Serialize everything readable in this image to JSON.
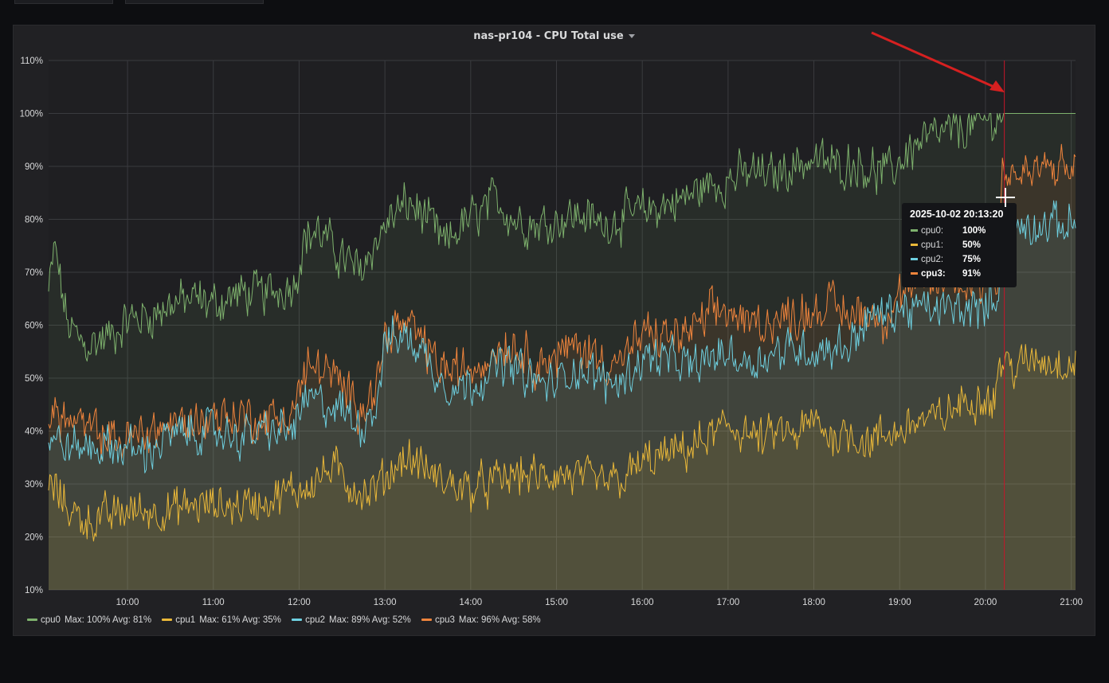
{
  "panel": {
    "title": "nas-pr104 - CPU Total use"
  },
  "chart_data": {
    "type": "area",
    "title": "nas-pr104 - CPU Total use",
    "x_ticks": [
      "10:00",
      "11:00",
      "12:00",
      "13:00",
      "14:00",
      "15:00",
      "16:00",
      "17:00",
      "18:00",
      "19:00",
      "20:00",
      "21:00"
    ],
    "x_range_hours": [
      9.08,
      21.05
    ],
    "y_ticks": [
      "10%",
      "20%",
      "30%",
      "40%",
      "50%",
      "60%",
      "70%",
      "80%",
      "90%",
      "100%",
      "110%"
    ],
    "ylim": [
      10,
      110
    ],
    "grid": true,
    "series": [
      {
        "name": "cpu0",
        "color": "#7eb26d",
        "keypoints": [
          [
            9.08,
            66
          ],
          [
            9.15,
            75
          ],
          [
            9.3,
            60
          ],
          [
            9.5,
            56
          ],
          [
            9.8,
            58
          ],
          [
            10.0,
            61
          ],
          [
            10.3,
            62
          ],
          [
            10.5,
            64
          ],
          [
            10.8,
            65
          ],
          [
            11.0,
            64
          ],
          [
            11.3,
            66
          ],
          [
            11.6,
            66
          ],
          [
            11.8,
            67
          ],
          [
            11.95,
            68
          ],
          [
            12.05,
            76
          ],
          [
            12.2,
            78
          ],
          [
            12.5,
            73
          ],
          [
            12.7,
            70
          ],
          [
            12.9,
            76
          ],
          [
            13.1,
            81
          ],
          [
            13.3,
            83
          ],
          [
            13.5,
            80
          ],
          [
            13.7,
            75
          ],
          [
            13.9,
            79
          ],
          [
            14.1,
            81
          ],
          [
            14.3,
            84
          ],
          [
            14.5,
            80
          ],
          [
            14.8,
            79
          ],
          [
            15.0,
            80
          ],
          [
            15.3,
            81
          ],
          [
            15.5,
            79
          ],
          [
            15.7,
            80
          ],
          [
            15.9,
            81
          ],
          [
            16.1,
            82
          ],
          [
            16.3,
            83
          ],
          [
            16.5,
            84
          ],
          [
            16.7,
            86
          ],
          [
            16.9,
            87
          ],
          [
            17.1,
            88
          ],
          [
            17.3,
            89
          ],
          [
            17.5,
            88
          ],
          [
            17.7,
            90
          ],
          [
            17.9,
            91
          ],
          [
            18.1,
            91
          ],
          [
            18.3,
            90
          ],
          [
            18.5,
            91
          ],
          [
            18.7,
            89
          ],
          [
            18.9,
            89
          ],
          [
            19.1,
            93
          ],
          [
            19.3,
            95
          ],
          [
            19.5,
            96
          ],
          [
            19.7,
            97
          ],
          [
            19.9,
            98
          ],
          [
            20.1,
            99
          ],
          [
            20.22,
            100
          ],
          [
            21.05,
            100
          ]
        ],
        "max": "100%",
        "avg": "81%"
      },
      {
        "name": "cpu1",
        "color": "#eab839",
        "keypoints": [
          [
            9.08,
            30
          ],
          [
            9.2,
            28
          ],
          [
            9.4,
            24
          ],
          [
            9.6,
            23
          ],
          [
            9.8,
            24
          ],
          [
            10.0,
            25
          ],
          [
            10.3,
            25
          ],
          [
            10.5,
            25
          ],
          [
            10.8,
            26
          ],
          [
            11.0,
            26
          ],
          [
            11.3,
            26
          ],
          [
            11.6,
            27
          ],
          [
            11.8,
            28
          ],
          [
            12.0,
            29
          ],
          [
            12.2,
            31
          ],
          [
            12.4,
            33
          ],
          [
            12.6,
            30
          ],
          [
            12.8,
            28
          ],
          [
            13.0,
            31
          ],
          [
            13.2,
            35
          ],
          [
            13.4,
            34
          ],
          [
            13.6,
            31
          ],
          [
            13.8,
            30
          ],
          [
            14.0,
            29
          ],
          [
            14.2,
            30
          ],
          [
            14.4,
            31
          ],
          [
            14.6,
            32
          ],
          [
            14.8,
            31
          ],
          [
            15.0,
            32
          ],
          [
            15.3,
            31
          ],
          [
            15.5,
            30
          ],
          [
            15.8,
            31
          ],
          [
            16.0,
            34
          ],
          [
            16.2,
            35
          ],
          [
            16.4,
            36
          ],
          [
            16.6,
            37
          ],
          [
            16.8,
            39
          ],
          [
            17.0,
            41
          ],
          [
            17.2,
            40
          ],
          [
            17.4,
            38
          ],
          [
            17.6,
            40
          ],
          [
            17.8,
            39
          ],
          [
            18.0,
            42
          ],
          [
            18.2,
            39
          ],
          [
            18.4,
            40
          ],
          [
            18.6,
            38
          ],
          [
            18.8,
            39
          ],
          [
            19.0,
            40
          ],
          [
            19.2,
            42
          ],
          [
            19.4,
            42
          ],
          [
            19.6,
            44
          ],
          [
            19.8,
            46
          ],
          [
            20.0,
            47
          ],
          [
            20.1,
            45
          ],
          [
            20.15,
            53
          ],
          [
            20.4,
            52
          ],
          [
            20.6,
            54
          ],
          [
            20.8,
            53
          ],
          [
            21.05,
            53
          ]
        ],
        "max": "61%",
        "avg": "35%"
      },
      {
        "name": "cpu2",
        "color": "#6ed0e0",
        "keypoints": [
          [
            9.08,
            39
          ],
          [
            9.3,
            37
          ],
          [
            9.6,
            37
          ],
          [
            9.9,
            37
          ],
          [
            10.2,
            36
          ],
          [
            10.5,
            39
          ],
          [
            10.8,
            40
          ],
          [
            11.0,
            40
          ],
          [
            11.3,
            39
          ],
          [
            11.6,
            40
          ],
          [
            11.9,
            40
          ],
          [
            12.1,
            46
          ],
          [
            12.3,
            45
          ],
          [
            12.5,
            44
          ],
          [
            12.7,
            41
          ],
          [
            12.9,
            45
          ],
          [
            13.0,
            57
          ],
          [
            13.2,
            58
          ],
          [
            13.4,
            56
          ],
          [
            13.6,
            51
          ],
          [
            13.8,
            48
          ],
          [
            14.0,
            49
          ],
          [
            14.2,
            51
          ],
          [
            14.4,
            53
          ],
          [
            14.6,
            51
          ],
          [
            14.8,
            49
          ],
          [
            15.0,
            49
          ],
          [
            15.2,
            52
          ],
          [
            15.4,
            51
          ],
          [
            15.6,
            49
          ],
          [
            15.8,
            50
          ],
          [
            16.0,
            54
          ],
          [
            16.2,
            54
          ],
          [
            16.4,
            53
          ],
          [
            16.6,
            52
          ],
          [
            16.8,
            54
          ],
          [
            17.0,
            55
          ],
          [
            17.2,
            53
          ],
          [
            17.4,
            54
          ],
          [
            17.6,
            55
          ],
          [
            17.8,
            56
          ],
          [
            18.0,
            55
          ],
          [
            18.2,
            56
          ],
          [
            18.4,
            56
          ],
          [
            18.6,
            61
          ],
          [
            18.8,
            62
          ],
          [
            19.0,
            63
          ],
          [
            19.2,
            63
          ],
          [
            19.4,
            63
          ],
          [
            19.6,
            63
          ],
          [
            19.8,
            63
          ],
          [
            20.0,
            63
          ],
          [
            20.15,
            67
          ],
          [
            20.3,
            78
          ],
          [
            20.5,
            79
          ],
          [
            20.8,
            79
          ],
          [
            21.05,
            79
          ]
        ],
        "max": "89%",
        "avg": "52%"
      },
      {
        "name": "cpu3",
        "color": "#ef843c",
        "keypoints": [
          [
            9.08,
            44
          ],
          [
            9.3,
            42
          ],
          [
            9.6,
            40
          ],
          [
            9.9,
            38
          ],
          [
            10.2,
            40
          ],
          [
            10.5,
            41
          ],
          [
            10.8,
            42
          ],
          [
            11.0,
            43
          ],
          [
            11.3,
            43
          ],
          [
            11.6,
            42
          ],
          [
            11.9,
            43
          ],
          [
            12.1,
            52
          ],
          [
            12.3,
            52
          ],
          [
            12.5,
            48
          ],
          [
            12.7,
            45
          ],
          [
            12.9,
            48
          ],
          [
            13.0,
            58
          ],
          [
            13.2,
            60
          ],
          [
            13.4,
            58
          ],
          [
            13.6,
            53
          ],
          [
            13.8,
            51
          ],
          [
            14.0,
            52
          ],
          [
            14.2,
            54
          ],
          [
            14.4,
            57
          ],
          [
            14.6,
            55
          ],
          [
            14.8,
            53
          ],
          [
            15.0,
            54
          ],
          [
            15.2,
            56
          ],
          [
            15.4,
            55
          ],
          [
            15.6,
            53
          ],
          [
            15.8,
            54
          ],
          [
            16.0,
            58
          ],
          [
            16.2,
            58
          ],
          [
            16.4,
            58
          ],
          [
            16.6,
            59
          ],
          [
            16.8,
            62
          ],
          [
            17.0,
            63
          ],
          [
            17.2,
            60
          ],
          [
            17.4,
            61
          ],
          [
            17.6,
            61
          ],
          [
            17.8,
            62
          ],
          [
            18.0,
            63
          ],
          [
            18.2,
            64
          ],
          [
            18.4,
            62
          ],
          [
            18.6,
            63
          ],
          [
            18.8,
            61
          ],
          [
            19.0,
            66
          ],
          [
            19.2,
            67
          ],
          [
            19.4,
            68
          ],
          [
            19.6,
            68
          ],
          [
            19.8,
            68
          ],
          [
            20.0,
            68
          ],
          [
            20.15,
            70
          ],
          [
            20.2,
            90
          ],
          [
            20.4,
            88
          ],
          [
            20.6,
            89
          ],
          [
            20.8,
            90
          ],
          [
            21.05,
            89
          ]
        ],
        "max": "96%",
        "avg": "58%"
      }
    ],
    "cursor_time": 20.22,
    "tooltip": {
      "time": "2025-10-02 20:13:20",
      "rows": [
        {
          "label": "cpu0:",
          "value": "100%",
          "color": "#7eb26d"
        },
        {
          "label": "cpu1:",
          "value": "50%",
          "color": "#eab839"
        },
        {
          "label": "cpu2:",
          "value": "75%",
          "color": "#6ed0e0"
        },
        {
          "label": "cpu3:",
          "value": "91%",
          "color": "#ef843c",
          "highlight": true
        }
      ]
    }
  },
  "legend": [
    {
      "name": "cpu0",
      "color": "#7eb26d",
      "stats": "Max: 100%  Avg: 81%"
    },
    {
      "name": "cpu1",
      "color": "#eab839",
      "stats": "Max: 61%  Avg: 35%"
    },
    {
      "name": "cpu2",
      "color": "#6ed0e0",
      "stats": "Max: 89%  Avg: 52%"
    },
    {
      "name": "cpu3",
      "color": "#ef843c",
      "stats": "Max: 96%  Avg: 58%"
    }
  ],
  "annotation": {
    "arrow_color": "#d62020",
    "cursor_color": "#c4162a"
  }
}
